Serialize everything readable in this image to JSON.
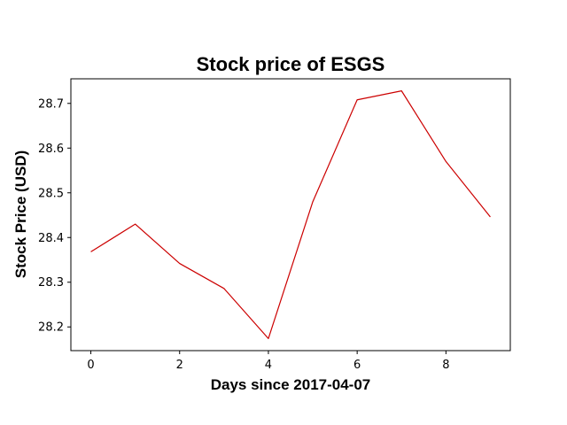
{
  "chart_data": {
    "type": "line",
    "title": "Stock price of ESGS",
    "xlabel": "Days since 2017-04-07",
    "ylabel": "Stock Price (USD)",
    "x": [
      0,
      1,
      2,
      3,
      4,
      5,
      6,
      7,
      8,
      9
    ],
    "series": [
      {
        "values": [
          28.368,
          28.43,
          28.342,
          28.286,
          28.174,
          28.48,
          28.708,
          28.728,
          28.57,
          28.446
        ],
        "color": "#cc0000"
      }
    ],
    "xlim": [
      -0.45,
      9.45
    ],
    "ylim": [
      28.147,
      28.755
    ],
    "xticks": [
      0,
      2,
      4,
      6,
      8
    ],
    "xtick_labels": [
      "0",
      "2",
      "4",
      "6",
      "8"
    ],
    "yticks": [
      28.2,
      28.3,
      28.4,
      28.5,
      28.6,
      28.7
    ],
    "ytick_labels": [
      "28.2",
      "28.3",
      "28.4",
      "28.5",
      "28.6",
      "28.7"
    ],
    "grid": false,
    "legend": "none"
  }
}
